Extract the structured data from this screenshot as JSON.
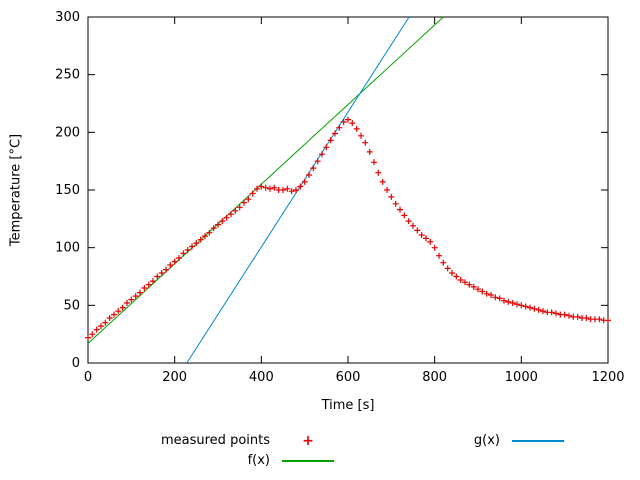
{
  "chart_data": {
    "type": "scatter",
    "title": "",
    "xlabel": "Time [s]",
    "ylabel": "Temperature [°C]",
    "xlim": [
      0,
      1200
    ],
    "ylim": [
      0,
      300
    ],
    "xticks": [
      0,
      200,
      400,
      600,
      800,
      1000,
      1200
    ],
    "yticks": [
      0,
      50,
      100,
      150,
      200,
      250,
      300
    ],
    "grid": false,
    "legend_position": "below-plot",
    "series": [
      {
        "name": "measured points",
        "type": "points",
        "marker": "plus",
        "color": "#e60000",
        "points": [
          [
            0,
            22
          ],
          [
            10,
            25
          ],
          [
            20,
            29
          ],
          [
            30,
            32
          ],
          [
            40,
            35
          ],
          [
            50,
            39
          ],
          [
            60,
            42
          ],
          [
            70,
            45
          ],
          [
            80,
            48
          ],
          [
            90,
            52
          ],
          [
            100,
            55
          ],
          [
            110,
            58
          ],
          [
            120,
            61
          ],
          [
            130,
            65
          ],
          [
            140,
            68
          ],
          [
            150,
            71
          ],
          [
            160,
            75
          ],
          [
            170,
            78
          ],
          [
            180,
            81
          ],
          [
            190,
            85
          ],
          [
            200,
            88
          ],
          [
            210,
            91
          ],
          [
            220,
            95
          ],
          [
            230,
            98
          ],
          [
            240,
            101
          ],
          [
            250,
            104
          ],
          [
            260,
            107
          ],
          [
            270,
            110
          ],
          [
            280,
            113
          ],
          [
            290,
            117
          ],
          [
            300,
            120
          ],
          [
            310,
            123
          ],
          [
            320,
            126
          ],
          [
            330,
            129
          ],
          [
            340,
            132
          ],
          [
            350,
            135
          ],
          [
            360,
            139
          ],
          [
            370,
            142
          ],
          [
            380,
            147
          ],
          [
            390,
            151
          ],
          [
            400,
            153
          ],
          [
            410,
            152
          ],
          [
            420,
            151
          ],
          [
            430,
            152
          ],
          [
            440,
            150
          ],
          [
            450,
            150
          ],
          [
            460,
            151
          ],
          [
            470,
            149
          ],
          [
            480,
            150
          ],
          [
            490,
            153
          ],
          [
            500,
            157
          ],
          [
            510,
            163
          ],
          [
            520,
            169
          ],
          [
            530,
            175
          ],
          [
            540,
            181
          ],
          [
            550,
            187
          ],
          [
            560,
            193
          ],
          [
            570,
            199
          ],
          [
            580,
            204
          ],
          [
            590,
            209
          ],
          [
            600,
            211
          ],
          [
            610,
            208
          ],
          [
            620,
            203
          ],
          [
            630,
            197
          ],
          [
            640,
            191
          ],
          [
            650,
            183
          ],
          [
            660,
            174
          ],
          [
            670,
            165
          ],
          [
            680,
            157
          ],
          [
            690,
            150
          ],
          [
            700,
            144
          ],
          [
            710,
            138
          ],
          [
            720,
            133
          ],
          [
            730,
            128
          ],
          [
            740,
            123
          ],
          [
            750,
            119
          ],
          [
            760,
            115
          ],
          [
            770,
            111
          ],
          [
            780,
            108
          ],
          [
            790,
            105
          ],
          [
            800,
            100
          ],
          [
            810,
            93
          ],
          [
            820,
            87
          ],
          [
            830,
            82
          ],
          [
            840,
            78
          ],
          [
            850,
            75
          ],
          [
            860,
            72
          ],
          [
            870,
            70
          ],
          [
            880,
            68
          ],
          [
            890,
            66
          ],
          [
            900,
            64
          ],
          [
            910,
            62
          ],
          [
            920,
            60
          ],
          [
            930,
            59
          ],
          [
            940,
            57
          ],
          [
            950,
            56
          ],
          [
            960,
            54
          ],
          [
            970,
            53
          ],
          [
            980,
            52
          ],
          [
            990,
            51
          ],
          [
            1000,
            50
          ],
          [
            1010,
            49
          ],
          [
            1020,
            48
          ],
          [
            1030,
            47
          ],
          [
            1040,
            46
          ],
          [
            1050,
            45
          ],
          [
            1060,
            44
          ],
          [
            1070,
            44
          ],
          [
            1080,
            43
          ],
          [
            1090,
            42
          ],
          [
            1100,
            42
          ],
          [
            1110,
            41
          ],
          [
            1120,
            40
          ],
          [
            1130,
            40
          ],
          [
            1140,
            39
          ],
          [
            1150,
            39
          ],
          [
            1160,
            38
          ],
          [
            1170,
            38
          ],
          [
            1180,
            38
          ],
          [
            1190,
            37
          ],
          [
            1200,
            37
          ]
        ]
      },
      {
        "name": "f(x)",
        "type": "line",
        "color": "#00a000",
        "endpoints": [
          [
            0,
            17
          ],
          [
            820,
            300
          ]
        ]
      },
      {
        "name": "g(x)",
        "type": "line",
        "color": "#0088cc",
        "endpoints": [
          [
            228,
            0
          ],
          [
            741,
            300
          ]
        ]
      }
    ]
  },
  "legend": {
    "measured_label": "measured points",
    "f_label": "f(x)",
    "g_label": "g(x)",
    "marker_glyph": "+"
  }
}
